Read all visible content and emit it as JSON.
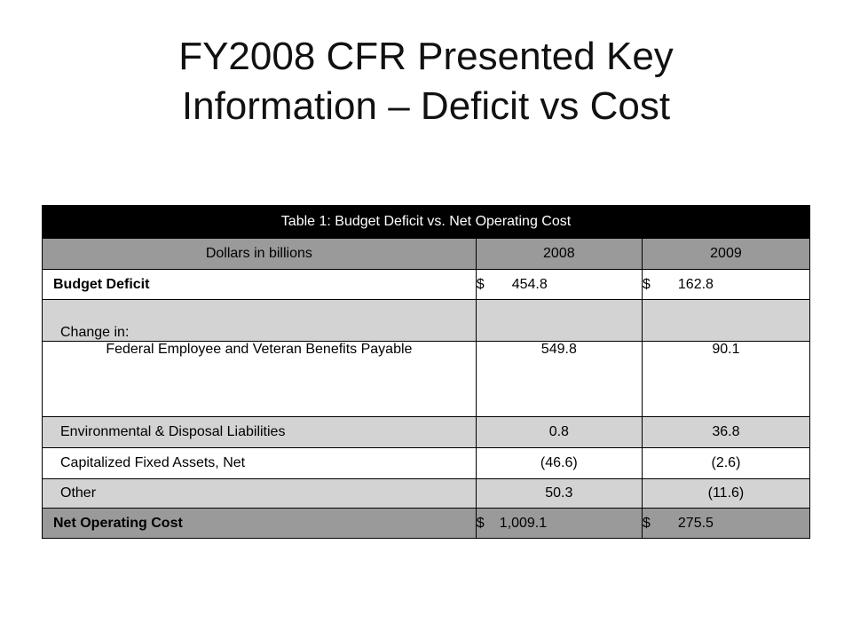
{
  "slide": {
    "title_line1": "FY2008 CFR Presented Key",
    "title_line2": "Information – Deficit vs Cost"
  },
  "table": {
    "caption": "Table 1: Budget Deficit vs. Net Operating Cost",
    "header": {
      "col1": "Dollars in billions",
      "col2": "2008",
      "col3": "2009"
    },
    "rows": [
      {
        "label": "Budget Deficit",
        "sym2008": "$",
        "v2008": "454.8",
        "sym2009": "$",
        "v2009": "162.8"
      },
      {
        "label": "Change in:",
        "v2008": "",
        "v2009": ""
      },
      {
        "label": "Federal Employee and Veteran Benefits Payable",
        "v2008": "549.8",
        "v2009": "90.1"
      },
      {
        "label": "Environmental & Disposal Liabilities",
        "v2008": "0.8",
        "v2009": "36.8"
      },
      {
        "label": "Capitalized Fixed Assets, Net",
        "v2008": "(46.6)",
        "v2009": "(2.6)"
      },
      {
        "label": "Other",
        "v2008": "50.3",
        "v2009": "(11.6)"
      },
      {
        "label": "Net Operating Cost",
        "sym2008": "$",
        "v2008": "1,009.1",
        "sym2009": "$",
        "v2009": "275.5"
      }
    ]
  },
  "colors": {
    "caption_bg": "#000000",
    "header_bg": "#9a9a9a",
    "light_row_bg": "#d3d3d3",
    "white_row_bg": "#ffffff"
  }
}
